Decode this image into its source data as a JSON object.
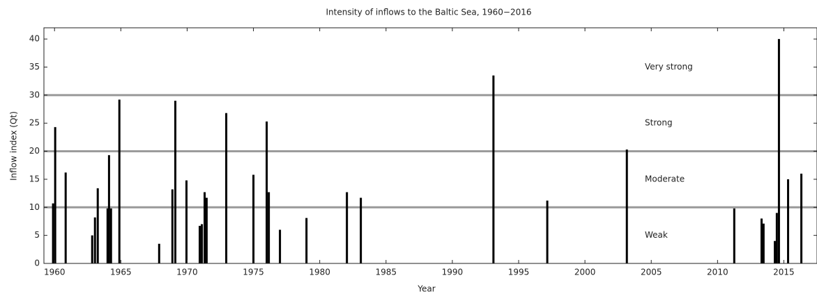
{
  "chart_data": {
    "type": "bar",
    "title": "Intensity of inflows to the Baltic Sea, 1960−2016",
    "x_label": "Year",
    "y_label": "Inflow index (Qt)",
    "x": [
      1959.89,
      1960.05,
      1960.84,
      1962.84,
      1963.05,
      1963.26,
      1964.0,
      1964.11,
      1964.26,
      1964.89,
      1967.89,
      1968.89,
      1969.11,
      1969.95,
      1970.95,
      1971.11,
      1971.32,
      1971.47,
      1972.95,
      1975.0,
      1976.0,
      1976.16,
      1977.0,
      1979.0,
      1982.05,
      1983.1,
      1993.1,
      1997.16,
      2003.16,
      2011.26,
      2013.32,
      2013.47,
      2014.32,
      2014.47,
      2014.63,
      2015.32,
      2016.32
    ],
    "values": [
      10.7,
      24.3,
      16.2,
      5.0,
      8.2,
      13.4,
      9.8,
      19.3,
      9.8,
      29.2,
      3.5,
      13.2,
      29.0,
      14.8,
      6.7,
      7.0,
      12.7,
      11.7,
      26.8,
      15.8,
      25.3,
      12.7,
      6.0,
      8.1,
      12.7,
      11.7,
      33.5,
      11.2,
      20.3,
      9.8,
      8.0,
      7.1,
      4.0,
      9.0,
      40.0,
      15.0,
      16.0
    ],
    "color": "#000000",
    "thresholds": [
      10,
      20,
      30
    ],
    "threshold_color": "#999999",
    "zone_labels": [
      "Weak",
      "Moderate",
      "Strong",
      "Very strong"
    ],
    "xlim": [
      1959.2,
      2017.5
    ],
    "xticks": [
      1960,
      1965,
      1970,
      1975,
      1980,
      1985,
      1990,
      1995,
      2000,
      2005,
      2010,
      2015
    ],
    "ylim": [
      0,
      42
    ],
    "yticks": [
      0,
      5,
      10,
      15,
      20,
      25,
      30,
      35,
      40
    ],
    "grid": false
  }
}
